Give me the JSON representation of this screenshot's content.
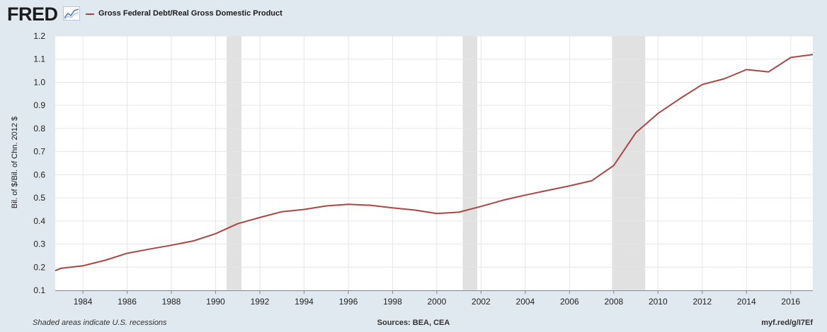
{
  "header": {
    "logo_text": "FRED",
    "logo_icon": "trend-chart-icon"
  },
  "footer": {
    "note": "Shaded areas indicate U.S. recessions",
    "sources": "Sources: BEA, CEA",
    "link": "myf.red/g/I7Ef"
  },
  "colors": {
    "series": "#aa4643",
    "recession": "#e1e1e1",
    "page_bg": "#e1e9f0",
    "plot_bg": "#ffffff",
    "grid": "#e6e6e6"
  },
  "chart_data": {
    "type": "line",
    "title": "",
    "xlabel": "",
    "ylabel": "Bil. of $/Bil. of Chn. 2012 $",
    "xlim": [
      1982.75,
      2017.0
    ],
    "ylim": [
      0.1,
      1.2
    ],
    "yticks": [
      "0.1",
      "0.2",
      "0.3",
      "0.4",
      "0.5",
      "0.6",
      "0.7",
      "0.8",
      "0.9",
      "1.0",
      "1.1",
      "1.2"
    ],
    "xticks": [
      "1984",
      "1986",
      "1988",
      "1990",
      "1992",
      "1994",
      "1996",
      "1998",
      "2000",
      "2002",
      "2004",
      "2006",
      "2008",
      "2010",
      "2012",
      "2014",
      "2016"
    ],
    "grid": true,
    "legend_position": "top-left",
    "recessions": [
      [
        1990.5,
        1991.17
      ],
      [
        2001.17,
        2001.83
      ],
      [
        2007.92,
        2009.42
      ]
    ],
    "series": [
      {
        "name": "Gross Federal Debt/Real Gross Domestic Product",
        "x": [
          1982.75,
          1983,
          1984,
          1985,
          1986,
          1987,
          1988,
          1989,
          1990,
          1991,
          1992,
          1993,
          1994,
          1995,
          1996,
          1997,
          1998,
          1999,
          2000,
          2001,
          2002,
          2003,
          2004,
          2005,
          2006,
          2007,
          2008,
          2009,
          2010,
          2011,
          2012,
          2013,
          2014,
          2015,
          2016,
          2017
        ],
        "y": [
          0.185,
          0.195,
          0.206,
          0.23,
          0.26,
          0.278,
          0.295,
          0.314,
          0.345,
          0.388,
          0.415,
          0.44,
          0.45,
          0.465,
          0.472,
          0.468,
          0.457,
          0.447,
          0.432,
          0.438,
          0.463,
          0.49,
          0.512,
          0.532,
          0.552,
          0.574,
          0.64,
          0.782,
          0.865,
          0.93,
          0.99,
          1.015,
          1.055,
          1.045,
          1.107,
          1.12
        ]
      }
    ]
  }
}
